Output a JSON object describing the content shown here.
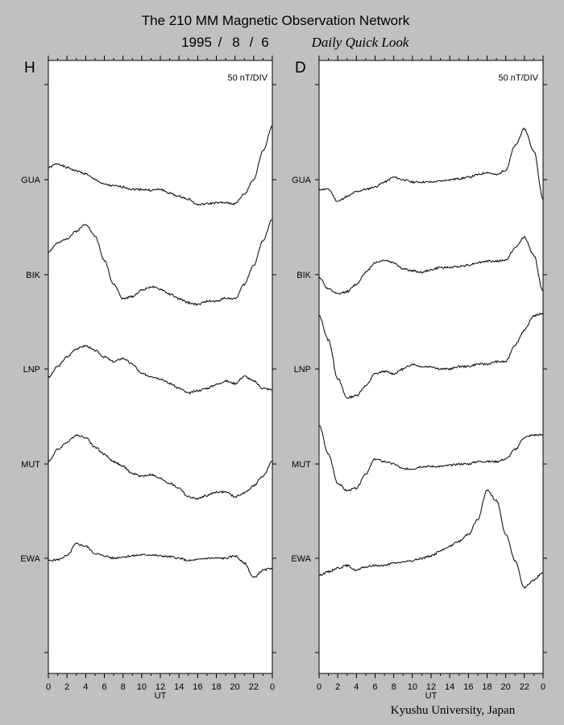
{
  "header": {
    "title": "The 210 MM Magnetic Observation Network",
    "date_year": "1995",
    "date_month": "8",
    "date_day": "6",
    "date_sep": "/",
    "subtitle": "Daily Quick Look",
    "credit": "Kyushu University, Japan"
  },
  "chart_data": [
    {
      "type": "line",
      "panel": "H",
      "scale_label": "50 nT/DIV",
      "xlabel": "UT",
      "x_ticks": [
        "0",
        "2",
        "4",
        "6",
        "8",
        "10",
        "12",
        "14",
        "16",
        "18",
        "20",
        "22",
        "0"
      ],
      "xlim": [
        0,
        24
      ],
      "station_order_top_to_bottom": [
        "GUA",
        "BIK",
        "LNP",
        "MUT",
        "EWA"
      ],
      "series": [
        {
          "name": "GUA",
          "x": [
            0,
            1,
            2,
            3,
            4,
            5,
            6,
            7,
            8,
            9,
            10,
            11,
            12,
            13,
            14,
            15,
            16,
            17,
            18,
            19,
            20,
            21,
            22,
            23,
            24
          ],
          "y": [
            25,
            33,
            25,
            18,
            12,
            0,
            -10,
            -13,
            -15,
            -20,
            -20,
            -22,
            -20,
            -28,
            -35,
            -40,
            -52,
            -50,
            -48,
            -48,
            -50,
            -30,
            0,
            60,
            110
          ]
        },
        {
          "name": "BIK",
          "x": [
            0,
            1,
            2,
            3,
            4,
            5,
            6,
            7,
            8,
            9,
            10,
            11,
            12,
            13,
            14,
            15,
            16,
            17,
            18,
            19,
            20,
            21,
            22,
            23,
            24
          ],
          "y": [
            48,
            65,
            75,
            90,
            105,
            80,
            30,
            -20,
            -50,
            -45,
            -32,
            -25,
            -30,
            -40,
            -50,
            -58,
            -62,
            -55,
            -55,
            -48,
            -50,
            -20,
            20,
            70,
            115
          ]
        },
        {
          "name": "LNP",
          "x": [
            0,
            1,
            2,
            3,
            4,
            5,
            6,
            7,
            8,
            9,
            10,
            11,
            12,
            13,
            14,
            15,
            16,
            17,
            18,
            19,
            20,
            21,
            22,
            23,
            24
          ],
          "y": [
            -18,
            5,
            25,
            42,
            48,
            38,
            25,
            15,
            22,
            10,
            -10,
            -15,
            -20,
            -30,
            -40,
            -50,
            -45,
            -40,
            -32,
            -25,
            -30,
            -15,
            -25,
            -40,
            -43
          ]
        },
        {
          "name": "MUT",
          "x": [
            0,
            1,
            2,
            3,
            4,
            5,
            6,
            7,
            8,
            9,
            10,
            11,
            12,
            13,
            14,
            15,
            16,
            17,
            18,
            19,
            20,
            21,
            22,
            23,
            24
          ],
          "y": [
            5,
            30,
            45,
            60,
            55,
            35,
            20,
            5,
            -5,
            -20,
            -25,
            -22,
            -30,
            -40,
            -50,
            -68,
            -72,
            -65,
            -58,
            -58,
            -68,
            -60,
            -45,
            -25,
            5
          ]
        },
        {
          "name": "EWA",
          "x": [
            0,
            1,
            2,
            3,
            4,
            5,
            6,
            7,
            8,
            9,
            10,
            11,
            12,
            13,
            14,
            15,
            16,
            17,
            18,
            19,
            20,
            21,
            22,
            23,
            24
          ],
          "y": [
            -5,
            -3,
            5,
            30,
            25,
            10,
            5,
            0,
            3,
            5,
            7,
            7,
            5,
            3,
            0,
            -5,
            -3,
            0,
            0,
            0,
            5,
            -10,
            -40,
            -25,
            -20
          ]
        }
      ]
    },
    {
      "type": "line",
      "panel": "D",
      "scale_label": "50 nT/DIV",
      "xlabel": "UT",
      "x_ticks": [
        "0",
        "2",
        "4",
        "6",
        "8",
        "10",
        "12",
        "14",
        "16",
        "18",
        "20",
        "22",
        "0"
      ],
      "xlim": [
        0,
        24
      ],
      "station_order_top_to_bottom": [
        "GUA",
        "BIK",
        "LNP",
        "MUT",
        "EWA"
      ],
      "series": [
        {
          "name": "GUA",
          "x": [
            0,
            1,
            2,
            3,
            4,
            5,
            6,
            7,
            8,
            9,
            10,
            11,
            12,
            13,
            14,
            15,
            16,
            17,
            18,
            19,
            20,
            21,
            22,
            23,
            24
          ],
          "y": [
            -20,
            -20,
            -45,
            -35,
            -25,
            -20,
            -15,
            -5,
            5,
            0,
            -5,
            -5,
            -5,
            -3,
            0,
            2,
            5,
            10,
            15,
            10,
            20,
            70,
            105,
            60,
            -40
          ]
        },
        {
          "name": "BIK",
          "x": [
            0,
            1,
            2,
            3,
            4,
            5,
            6,
            7,
            8,
            9,
            10,
            11,
            12,
            13,
            14,
            15,
            16,
            17,
            18,
            19,
            20,
            21,
            22,
            23,
            24
          ],
          "y": [
            -5,
            -30,
            -40,
            -35,
            -20,
            5,
            25,
            30,
            25,
            12,
            8,
            5,
            10,
            15,
            15,
            17,
            20,
            25,
            28,
            28,
            30,
            55,
            78,
            40,
            -35
          ]
        },
        {
          "name": "LNP",
          "x": [
            0,
            1,
            2,
            3,
            4,
            5,
            6,
            7,
            8,
            9,
            10,
            11,
            12,
            13,
            14,
            15,
            16,
            17,
            18,
            19,
            20,
            21,
            22,
            23,
            24
          ],
          "y": [
            110,
            60,
            -20,
            -60,
            -55,
            -35,
            -10,
            -5,
            -10,
            0,
            10,
            5,
            5,
            0,
            0,
            5,
            5,
            10,
            10,
            15,
            15,
            50,
            80,
            110,
            115
          ]
        },
        {
          "name": "MUT",
          "x": [
            0,
            1,
            2,
            3,
            4,
            5,
            6,
            7,
            8,
            9,
            10,
            11,
            12,
            13,
            14,
            15,
            16,
            17,
            18,
            19,
            20,
            21,
            22,
            23,
            24
          ],
          "y": [
            80,
            20,
            -40,
            -55,
            -50,
            -20,
            10,
            5,
            0,
            -10,
            -10,
            -5,
            -5,
            -5,
            -3,
            0,
            0,
            5,
            5,
            5,
            10,
            30,
            55,
            60,
            60
          ]
        },
        {
          "name": "EWA",
          "x": [
            0,
            1,
            2,
            3,
            4,
            5,
            6,
            7,
            8,
            9,
            10,
            11,
            12,
            13,
            14,
            15,
            16,
            17,
            18,
            19,
            20,
            21,
            22,
            23,
            24
          ],
          "y": [
            -35,
            -28,
            -20,
            -15,
            -25,
            -18,
            -15,
            -15,
            -10,
            -8,
            -5,
            0,
            5,
            15,
            25,
            35,
            50,
            80,
            140,
            120,
            50,
            -5,
            -60,
            -45,
            -30
          ]
        }
      ]
    }
  ]
}
